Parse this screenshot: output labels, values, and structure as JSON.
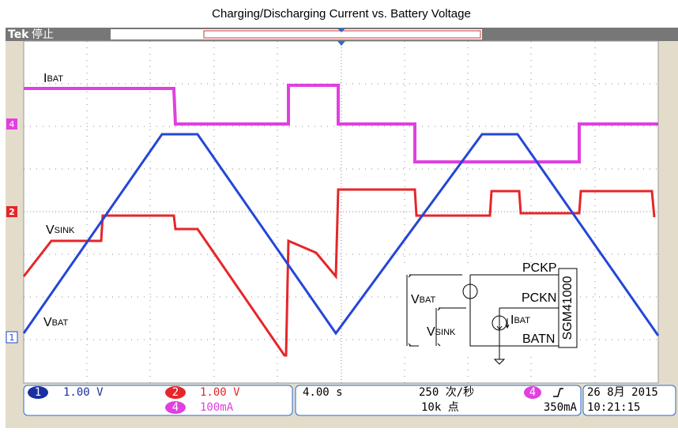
{
  "title": "Charging/Discharging Current vs. Battery Voltage",
  "header": {
    "brand": "Tek",
    "state": "停止"
  },
  "trace_labels": {
    "ibat": {
      "main": "I",
      "sub": "BAT"
    },
    "vsink": {
      "main": "V",
      "sub": "SINK"
    },
    "vbat": {
      "main": "V",
      "sub": "BAT"
    }
  },
  "markers": {
    "ch4": "4",
    "ch2": "2",
    "ch1": "1"
  },
  "circuit": {
    "pckp": "PCKP",
    "pckn": "PCKN",
    "batn": "BATN",
    "chip": "SGM41000",
    "vbat": {
      "main": "V",
      "sub": "BAT"
    },
    "vsink": {
      "main": "V",
      "sub": "SINK"
    },
    "ibat": {
      "main": "I",
      "sub": "BAT"
    }
  },
  "status": {
    "ch1": {
      "num": "1",
      "scale": "1.00 V"
    },
    "ch2": {
      "num": "2",
      "scale": "1.00 V"
    },
    "ch4": {
      "num": "4",
      "scale": "100mA"
    },
    "timebase": "4.00 s",
    "rate": "250 次/秒",
    "points": "10k 点",
    "trigger": {
      "num": "4",
      "level": "350mA"
    },
    "date": "26 8月  2015",
    "time": "10:21:15"
  }
}
